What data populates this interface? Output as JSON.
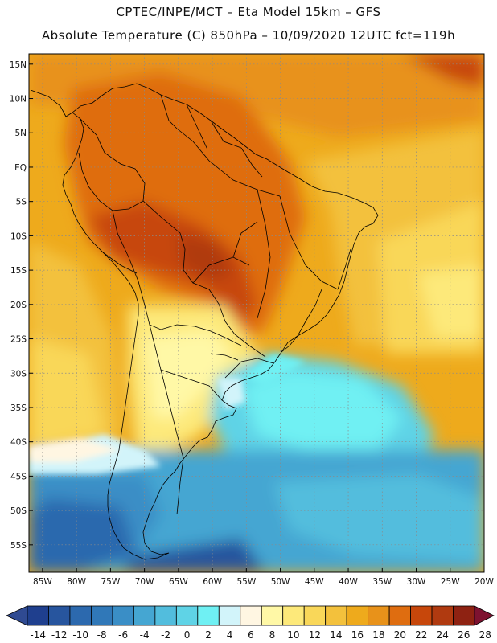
{
  "header": {
    "line1": "CPTEC/INPE/MCT –  Eta Model 15km – GFS",
    "line2": "Absolute Temperature (C) 850hPa – 10/09/2020 12UTC fct=119h"
  },
  "lat_labels": [
    "15N",
    "10N",
    "5N",
    "EQ",
    "5S",
    "10S",
    "15S",
    "20S",
    "25S",
    "30S",
    "35S",
    "40S",
    "45S",
    "50S",
    "55S"
  ],
  "lat_values": [
    15,
    10,
    5,
    0,
    -5,
    -10,
    -15,
    -20,
    -25,
    -30,
    -35,
    -40,
    -45,
    -50,
    -55
  ],
  "lon_labels": [
    "85W",
    "80W",
    "75W",
    "70W",
    "65W",
    "60W",
    "55W",
    "50W",
    "45W",
    "40W",
    "35W",
    "30W",
    "25W",
    "20W"
  ],
  "lon_values": [
    -85,
    -80,
    -75,
    -70,
    -65,
    -60,
    -55,
    -50,
    -45,
    -40,
    -35,
    -30,
    -25,
    -20
  ],
  "colorbar": {
    "labels": [
      "-14",
      "-12",
      "-10",
      "-8",
      "-6",
      "-4",
      "-2",
      "0",
      "2",
      "4",
      "6",
      "8",
      "10",
      "12",
      "14",
      "16",
      "18",
      "20",
      "22",
      "24",
      "26",
      "28"
    ],
    "colors": [
      "#1f3f8e",
      "#27559e",
      "#2c69ae",
      "#3078b8",
      "#3a8ec6",
      "#45a6d2",
      "#52bddd",
      "#5fd3e6",
      "#6ff0f3",
      "#d2f4fa",
      "#fff6e2",
      "#fff8a6",
      "#fde97a",
      "#f9d759",
      "#f3c13c",
      "#eeaa1c",
      "#e8921a",
      "#df6d10",
      "#c7470b",
      "#b03a10",
      "#8e2212"
    ],
    "low_arrow_color": "#2f4a92",
    "high_arrow_color": "#7e1230"
  }
}
